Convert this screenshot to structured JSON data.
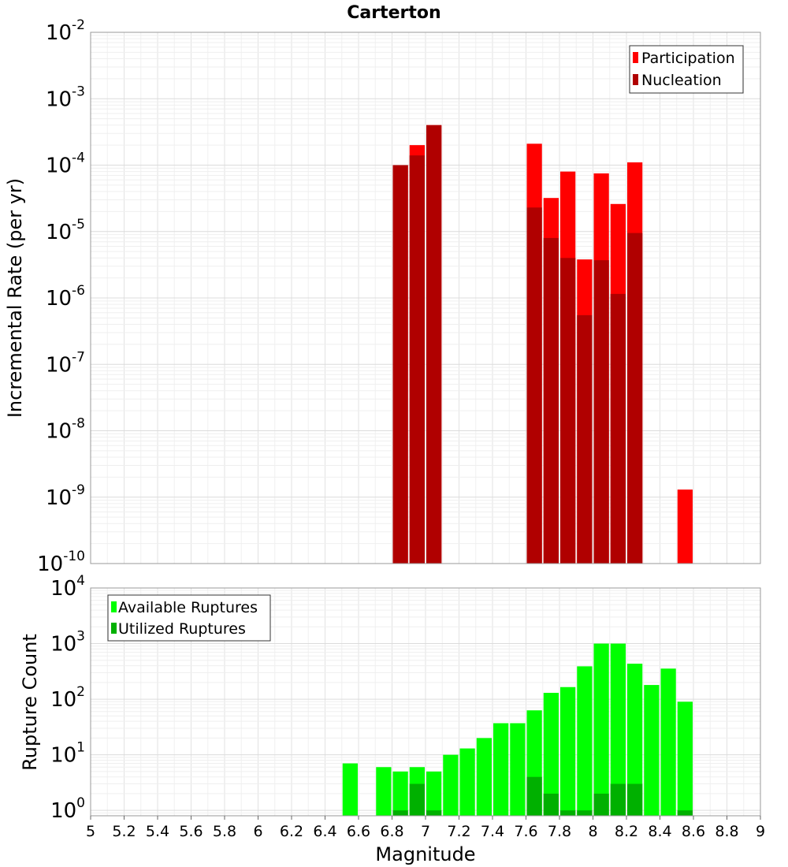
{
  "chart_data": [
    {
      "type": "bar",
      "title": "Carterton",
      "ylabel": "Incremental Rate (per yr)",
      "xlabel": "",
      "xlim": [
        5,
        9
      ],
      "ylim": [
        1e-10,
        0.01
      ],
      "yscale": "log",
      "grid": true,
      "legend_position": "top-right",
      "bin_width": 0.1,
      "series": [
        {
          "name": "Participation",
          "color": "#ff0000",
          "x": [
            6.85,
            6.95,
            7.05,
            7.65,
            7.75,
            7.85,
            7.95,
            8.05,
            8.15,
            8.25,
            8.55
          ],
          "values": [
            0.0001,
            0.0002,
            0.0004,
            0.00021,
            3.2e-05,
            8e-05,
            3.8e-06,
            7.5e-05,
            2.6e-05,
            0.00011,
            1.3e-09
          ]
        },
        {
          "name": "Nucleation",
          "color": "#b00000",
          "x": [
            6.85,
            6.95,
            7.05,
            7.65,
            7.75,
            7.85,
            7.95,
            8.05,
            8.15,
            8.25
          ],
          "values": [
            0.0001,
            0.00014,
            0.0004,
            2.3e-05,
            8e-06,
            4e-06,
            5.5e-07,
            3.7e-06,
            1.15e-06,
            9.5e-06
          ]
        }
      ]
    },
    {
      "type": "bar",
      "title": "",
      "ylabel": "Rupture Count",
      "xlabel": "Magnitude",
      "xlim": [
        5,
        9
      ],
      "ylim": [
        0.8,
        10000
      ],
      "yscale": "log",
      "grid": true,
      "legend_position": "top-left",
      "bin_width": 0.1,
      "xticks": [
        "5",
        "5.2",
        "5.4",
        "5.6",
        "5.8",
        "6",
        "6.2",
        "6.4",
        "6.6",
        "6.8",
        "7",
        "7.2",
        "7.4",
        "7.6",
        "7.8",
        "8",
        "8.2",
        "8.4",
        "8.6",
        "8.8",
        "9"
      ],
      "series": [
        {
          "name": "Available Ruptures",
          "color": "#00ff00",
          "x": [
            6.55,
            6.75,
            6.85,
            6.95,
            7.05,
            7.15,
            7.25,
            7.35,
            7.45,
            7.55,
            7.65,
            7.75,
            7.85,
            7.95,
            8.05,
            8.15,
            8.25,
            8.35,
            8.45,
            8.55
          ],
          "values": [
            7,
            6,
            5,
            6,
            5,
            10,
            13,
            20,
            37,
            37,
            63,
            130,
            165,
            390,
            1000,
            1000,
            435,
            180,
            355,
            90
          ]
        },
        {
          "name": "Utilized Ruptures",
          "color": "#00b000",
          "x": [
            6.85,
            6.95,
            7.05,
            7.65,
            7.75,
            7.85,
            7.95,
            8.05,
            8.15,
            8.25,
            8.55
          ],
          "values": [
            1,
            3,
            1,
            4,
            2,
            1,
            1,
            2,
            3,
            3,
            1
          ]
        }
      ]
    }
  ]
}
